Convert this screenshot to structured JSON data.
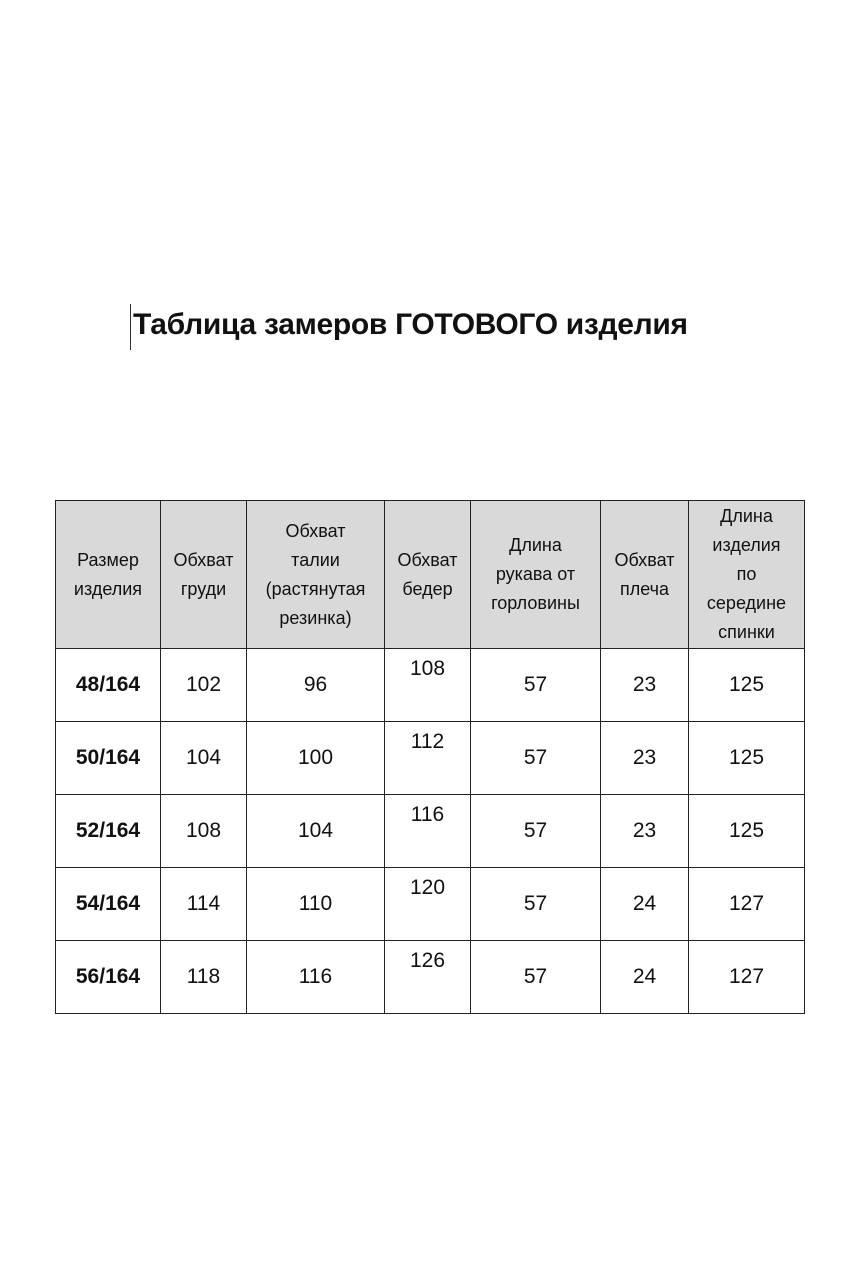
{
  "title": "Таблица замеров ГОТОВОГО изделия",
  "table": {
    "headers": [
      [
        "Размер",
        "изделия"
      ],
      [
        "Обхват",
        "груди"
      ],
      [
        "Обхват",
        "талии",
        "(растянутая",
        "резинка)"
      ],
      [
        "Обхват",
        "бедер"
      ],
      [
        "Длина",
        "рукава от",
        "горловины"
      ],
      [
        "Обхват",
        "плеча"
      ],
      [
        "Длина",
        "изделия",
        "по",
        "середине",
        "спинки"
      ]
    ],
    "rows": [
      [
        "48/164",
        "102",
        "96",
        "108",
        "57",
        "23",
        "125"
      ],
      [
        "50/164",
        "104",
        "100",
        "112",
        "57",
        "23",
        "125"
      ],
      [
        "52/164",
        "108",
        "104",
        "116",
        "57",
        "23",
        "125"
      ],
      [
        "54/164",
        "114",
        "110",
        "120",
        "57",
        "24",
        "127"
      ],
      [
        "56/164",
        "118",
        "116",
        "126",
        "57",
        "24",
        "127"
      ]
    ],
    "header_bg": "#d9d9d9"
  }
}
